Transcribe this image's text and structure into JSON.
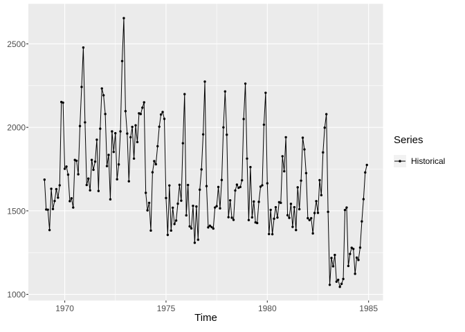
{
  "figure": {
    "kind": "ggplot2 time series plot",
    "background": "#FFFFFF"
  },
  "axes": {
    "x": {
      "label": "Time",
      "ticks": [
        {
          "value": 1970,
          "label": "1970"
        },
        {
          "value": 1975,
          "label": "1975"
        },
        {
          "value": 1980,
          "label": "1980"
        },
        {
          "value": 1985,
          "label": "1985"
        }
      ],
      "minor": [
        1972.5,
        1977.5,
        1982.5
      ]
    },
    "y": {
      "label": "",
      "ticks": [
        {
          "value": 1000,
          "label": "1000"
        },
        {
          "value": 1500,
          "label": "1500"
        },
        {
          "value": 2000,
          "label": "2000"
        },
        {
          "value": 2500,
          "label": "2500"
        }
      ],
      "minor": [
        1250,
        1750,
        2250
      ]
    }
  },
  "legend": {
    "title": "Series",
    "items": [
      {
        "label": "Historical",
        "glyph": "line-with-point",
        "color": "#000000"
      }
    ]
  },
  "colors": {
    "panel": "#EBEBEB",
    "grid": "#FFFFFF",
    "series": "#000000",
    "axis_text": "#4D4D4D",
    "tick_mark": "#333333",
    "legend_key": "#F2F2F2"
  },
  "chart_data": {
    "type": "line",
    "title": "",
    "xlabel": "Time",
    "ylabel": "",
    "legend_position": "right",
    "grid": true,
    "start_year": 1969,
    "frequency": 12,
    "x_domain": [
      1968.204,
      1985.712
    ],
    "y_domain": [
      963,
      2740
    ],
    "xlim": [
      1969.0,
      1984.917
    ],
    "ylim": [
      1045,
      2654
    ],
    "series": [
      {
        "name": "Historical",
        "values": [
          1687,
          1508,
          1507,
          1385,
          1632,
          1511,
          1559,
          1630,
          1579,
          1653,
          2152,
          2148,
          1752,
          1765,
          1717,
          1558,
          1575,
          1520,
          1805,
          1800,
          1719,
          2008,
          2242,
          2478,
          2030,
          1655,
          1693,
          1623,
          1805,
          1746,
          1795,
          1926,
          1619,
          1992,
          2233,
          2192,
          2080,
          1768,
          1835,
          1569,
          1976,
          1853,
          1965,
          1689,
          1778,
          1976,
          2397,
          2654,
          2097,
          1963,
          1677,
          1941,
          2003,
          1813,
          2012,
          1912,
          2084,
          2080,
          2118,
          2150,
          1608,
          1503,
          1548,
          1382,
          1731,
          1798,
          1779,
          1887,
          2004,
          2077,
          2092,
          2051,
          1577,
          1356,
          1652,
          1382,
          1519,
          1421,
          1442,
          1543,
          1656,
          1561,
          1905,
          2199,
          1473,
          1655,
          1407,
          1395,
          1530,
          1309,
          1526,
          1327,
          1627,
          1748,
          1958,
          2274,
          1648,
          1401,
          1411,
          1403,
          1394,
          1520,
          1528,
          1643,
          1515,
          1685,
          2000,
          2215,
          1956,
          1462,
          1563,
          1459,
          1446,
          1622,
          1657,
          1638,
          1643,
          1683,
          2050,
          2262,
          1813,
          1445,
          1762,
          1461,
          1556,
          1431,
          1427,
          1554,
          1645,
          1653,
          2016,
          2207,
          1665,
          1361,
          1506,
          1360,
          1453,
          1522,
          1460,
          1552,
          1548,
          1827,
          1737,
          1941,
          1474,
          1458,
          1542,
          1404,
          1522,
          1385,
          1641,
          1510,
          1681,
          1938,
          1868,
          1726,
          1456,
          1445,
          1456,
          1365,
          1487,
          1558,
          1488,
          1684,
          1594,
          1850,
          1998,
          2079,
          1494,
          1057,
          1218,
          1168,
          1236,
          1076,
          1087,
          1045,
          1063,
          1092,
          1505,
          1520,
          1170,
          1242,
          1279,
          1272,
          1123,
          1220,
          1206,
          1280,
          1437,
          1570,
          1730,
          1775
        ]
      }
    ]
  }
}
